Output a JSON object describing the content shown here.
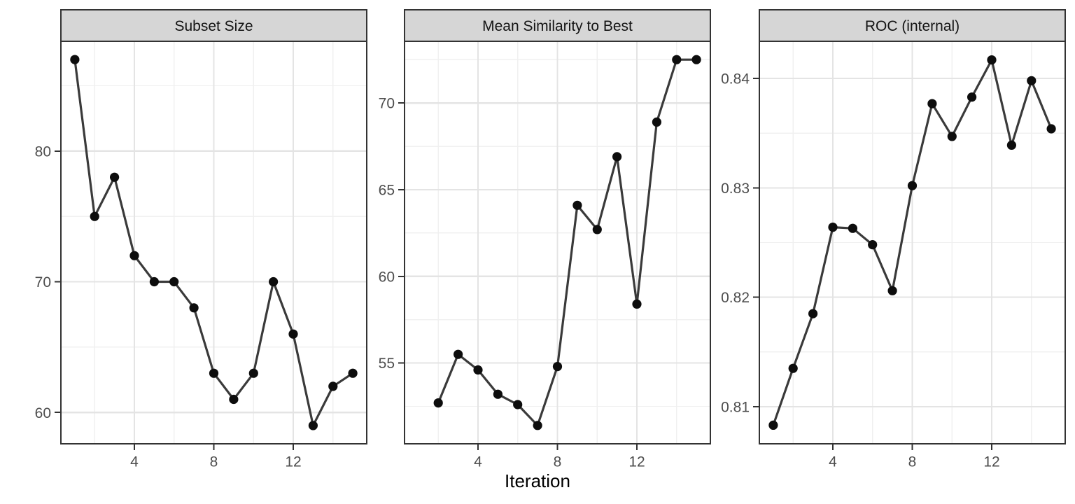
{
  "chart_data": {
    "type": "line",
    "title": "",
    "xlabel": "Iteration",
    "ylabel": "",
    "grid": true,
    "legend": "none",
    "xlim": [
      0.3,
      15.7
    ],
    "x_ticks": [
      4,
      8,
      12
    ],
    "x_minor": [
      2,
      6,
      10,
      14
    ],
    "panels": [
      {
        "title": "Subset Size",
        "x": [
          1,
          2,
          3,
          4,
          5,
          6,
          7,
          8,
          9,
          10,
          11,
          12,
          13,
          14,
          15
        ],
        "y": [
          87,
          75,
          78,
          72,
          70,
          70,
          68,
          63,
          61,
          63,
          70,
          66,
          59,
          62,
          63
        ],
        "y_ticks": [
          60,
          70,
          80
        ],
        "y_minor": [
          55,
          65,
          75,
          85
        ],
        "ylim": [
          57.6,
          88.4
        ]
      },
      {
        "title": "Mean Similarity to Best",
        "x": [
          2,
          3,
          4,
          5,
          6,
          7,
          8,
          9,
          10,
          11,
          12,
          13,
          14,
          15
        ],
        "y": [
          52.7,
          55.5,
          54.6,
          53.2,
          52.6,
          51.4,
          54.8,
          64.1,
          62.7,
          66.9,
          58.4,
          68.9,
          72.5,
          72.5
        ],
        "y_ticks": [
          55,
          60,
          65,
          70
        ],
        "y_minor": [
          52.5,
          57.5,
          62.5,
          67.5,
          72.5
        ],
        "ylim": [
          50.34,
          73.56
        ]
      },
      {
        "title": "ROC (internal)",
        "x": [
          1,
          2,
          3,
          4,
          5,
          6,
          7,
          8,
          9,
          10,
          11,
          12,
          13,
          14,
          15
        ],
        "y": [
          0.8083,
          0.8135,
          0.8185,
          0.8264,
          0.8263,
          0.8248,
          0.8206,
          0.8302,
          0.8377,
          0.8347,
          0.8383,
          0.8417,
          0.8339,
          0.8398,
          0.8354
        ],
        "y_ticks": [
          0.81,
          0.82,
          0.83,
          0.84
        ],
        "y_minor": [
          0.805,
          0.815,
          0.825,
          0.835,
          0.845
        ],
        "ylim": [
          0.8066,
          0.8434
        ]
      }
    ],
    "style": {
      "line_color": "#3a3a3a",
      "point_color": "#0d0d0d",
      "panel_bg": "#ffffff",
      "grid_major_color": "#e4e4e4",
      "grid_minor_color": "#f0f0f0",
      "border_color": "#333333",
      "strip_bg": "#d6d6d6",
      "strip_text_color": "#141414",
      "tick_label_color": "#4d4d4d",
      "axis_title_color": "#000000"
    }
  }
}
